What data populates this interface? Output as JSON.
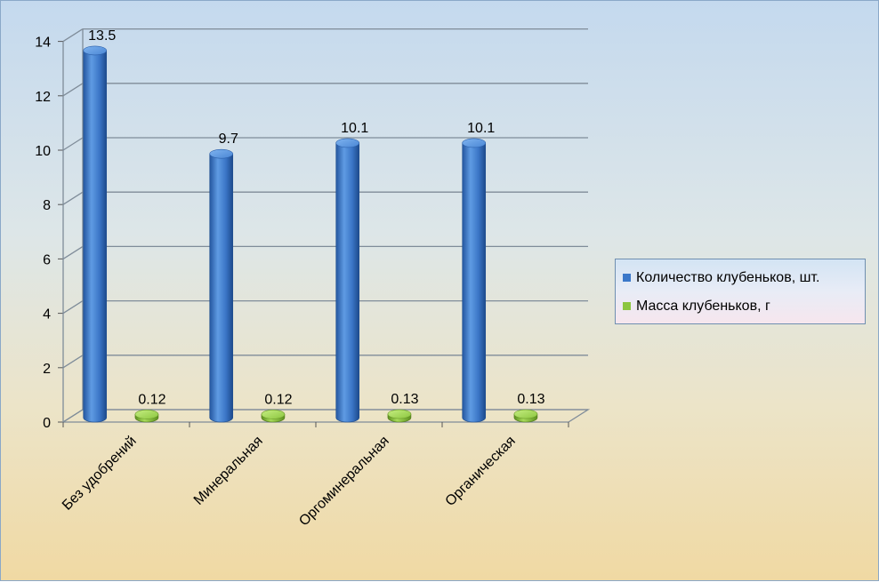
{
  "chart_data": {
    "type": "bar",
    "categories": [
      "Без удобрений",
      "Минеральная",
      "Оргоминеральная",
      "Органическая"
    ],
    "series": [
      {
        "name": "Количество клубеньков, шт.",
        "values": [
          13.5,
          9.7,
          10.1,
          10.1
        ],
        "color": "#3b78c9"
      },
      {
        "name": "Масса клубеньков, г",
        "values": [
          0.12,
          0.12,
          0.13,
          0.13
        ],
        "color": "#8cc63f"
      }
    ],
    "value_labels": [
      [
        "13.5",
        "9.7",
        "10.1",
        "10.1"
      ],
      [
        "0.12",
        "0.12",
        "0.13",
        "0.13"
      ]
    ],
    "yticks": [
      "0",
      "2",
      "4",
      "6",
      "8",
      "10",
      "12",
      "14"
    ],
    "ylim": [
      0,
      14
    ],
    "grid": true,
    "legend_position": "right",
    "style": "3d-cylinder"
  }
}
